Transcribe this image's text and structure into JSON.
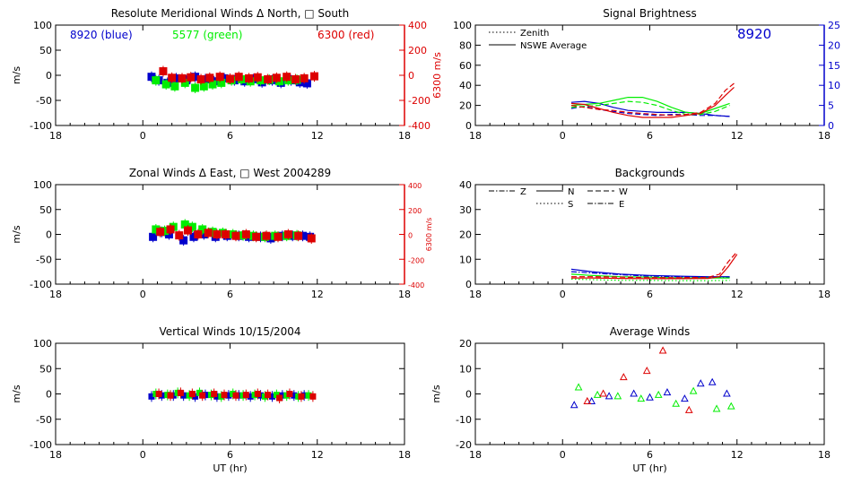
{
  "colors": {
    "blue": "#0000cc",
    "green": "#00ee00",
    "red": "#dd0000",
    "black": "#000000"
  },
  "chart_data": [
    {
      "id": "meridional",
      "type": "scatter",
      "title": "Resolute Meridional Winds Δ North, □ South",
      "ylabel": "m/s",
      "y2label": "6300 m/s",
      "xlim": [
        -6,
        18
      ],
      "ylim": [
        -100,
        100
      ],
      "y2lim": [
        -400,
        400
      ],
      "xticklabels": [
        "18",
        "0",
        "6",
        "12",
        "18"
      ],
      "yticks": [
        -100,
        -50,
        0,
        50,
        100
      ],
      "y2ticks": [
        -400,
        -200,
        0,
        200,
        400
      ],
      "annotations": [
        "8920 (blue)",
        "5577 (green)",
        "6300 (red)"
      ],
      "series": [
        {
          "color": "blue",
          "x": [
            0.6,
            1.1,
            1.7,
            2.3,
            3.0,
            3.6,
            4.3,
            4.9,
            5.6,
            6.3,
            7.0,
            7.6,
            8.2,
            8.9,
            9.5,
            10.2,
            10.8,
            11.3
          ],
          "y": [
            -3,
            -10,
            -15,
            -6,
            -10,
            -3,
            -8,
            -12,
            -6,
            -10,
            -12,
            -8,
            -14,
            -10,
            -15,
            -10,
            -14,
            -16
          ]
        },
        {
          "color": "green",
          "x": [
            0.9,
            1.6,
            2.2,
            2.9,
            3.6,
            4.2,
            4.8,
            5.4,
            6.1,
            6.8,
            7.4,
            8.1,
            8.7,
            9.4,
            10.0,
            10.6
          ],
          "y": [
            -10,
            -18,
            -22,
            -15,
            -25,
            -22,
            -18,
            -15,
            -10,
            -8,
            -12,
            -10,
            -9,
            -12,
            -10,
            -9
          ]
        },
        {
          "color": "red",
          "x": [
            1.4,
            2.0,
            2.7,
            3.3,
            4.0,
            4.6,
            5.3,
            6.0,
            6.6,
            7.3,
            7.9,
            8.6,
            9.2,
            9.9,
            10.5,
            11.1,
            11.8
          ],
          "y": [
            8,
            -5,
            -6,
            -4,
            -8,
            -5,
            -3,
            -7,
            -3,
            -6,
            -4,
            -8,
            -5,
            -3,
            -8,
            -6,
            -2
          ]
        }
      ]
    },
    {
      "id": "zonal",
      "type": "scatter",
      "title": "Zonal Winds Δ East, □ West 2004289",
      "ylabel": "m/s",
      "y2label": "6300 m/s",
      "xlim": [
        -6,
        18
      ],
      "ylim": [
        -100,
        100
      ],
      "y2lim": [
        -400,
        400
      ],
      "xticklabels": [
        "18",
        "0",
        "6",
        "12",
        "18"
      ],
      "yticks": [
        -100,
        -50,
        0,
        50,
        100
      ],
      "y2ticks": [
        -400,
        -200,
        0,
        200,
        400
      ],
      "series": [
        {
          "color": "blue",
          "x": [
            0.7,
            1.3,
            1.8,
            2.8,
            3.5,
            4.2,
            5.0,
            5.8,
            6.6,
            7.3,
            8.1,
            8.8,
            9.6,
            10.3,
            11.0,
            11.5
          ],
          "y": [
            -5,
            5,
            0,
            -12,
            -5,
            0,
            -5,
            -3,
            -3,
            -5,
            -5,
            -8,
            -3,
            -3,
            -3,
            -5
          ]
        },
        {
          "color": "green",
          "x": [
            0.9,
            1.5,
            2.1,
            2.9,
            3.4,
            4.1,
            4.8,
            5.5,
            6.2,
            6.9,
            7.6,
            8.4,
            9.1,
            9.9,
            10.6
          ],
          "y": [
            10,
            7,
            15,
            20,
            15,
            10,
            5,
            3,
            0,
            -2,
            -3,
            -5,
            -3,
            -3,
            -2
          ]
        },
        {
          "color": "red",
          "x": [
            1.2,
            1.9,
            2.5,
            3.1,
            3.8,
            4.5,
            5.1,
            5.7,
            6.4,
            7.1,
            7.8,
            8.5,
            9.3,
            10.0,
            10.7,
            11.6
          ],
          "y": [
            5,
            10,
            -2,
            8,
            0,
            3,
            0,
            0,
            -3,
            0,
            -5,
            -3,
            -5,
            0,
            -3,
            -8
          ]
        }
      ]
    },
    {
      "id": "vertical",
      "type": "scatter",
      "title": "Vertical Winds 10/15/2004",
      "ylabel": "m/s",
      "xlabel": "UT (hr)",
      "xlim": [
        -6,
        18
      ],
      "ylim": [
        -100,
        100
      ],
      "xticklabels": [
        "18",
        "0",
        "6",
        "12",
        "18"
      ],
      "yticks": [
        -100,
        -50,
        0,
        50,
        100
      ],
      "series": [
        {
          "color": "blue",
          "x": [
            0.6,
            1.3,
            2.1,
            2.8,
            3.6,
            4.3,
            5.1,
            5.9,
            6.6,
            7.4,
            8.1,
            8.9,
            9.6,
            10.4,
            11.1
          ],
          "y": [
            -5,
            -3,
            -3,
            -3,
            -5,
            -2,
            -5,
            -3,
            -3,
            -5,
            -3,
            -5,
            -3,
            -3,
            -3
          ]
        },
        {
          "color": "green",
          "x": [
            0.9,
            1.7,
            2.4,
            3.2,
            3.9,
            4.7,
            5.4,
            6.2,
            6.9,
            7.7,
            8.4,
            9.2,
            9.9,
            10.7,
            11.4
          ],
          "y": [
            0,
            -2,
            2,
            -3,
            2,
            -2,
            -5,
            0,
            -3,
            -2,
            -5,
            -2,
            -3,
            -5,
            -3
          ]
        },
        {
          "color": "red",
          "x": [
            1.1,
            1.9,
            2.6,
            3.4,
            4.1,
            4.9,
            5.6,
            6.4,
            7.1,
            7.9,
            8.6,
            9.4,
            10.1,
            10.9,
            11.7
          ],
          "y": [
            0,
            -3,
            2,
            0,
            -3,
            0,
            -2,
            -3,
            -2,
            0,
            -2,
            -8,
            0,
            -5,
            -5
          ]
        }
      ]
    },
    {
      "id": "brightness",
      "type": "line",
      "title": "Signal Brightness",
      "xlim": [
        -6,
        18
      ],
      "ylim": [
        0,
        100
      ],
      "y2lim": [
        0,
        25
      ],
      "xticklabels": [
        "18",
        "0",
        "6",
        "12",
        "18"
      ],
      "yticks": [
        0,
        20,
        40,
        60,
        80,
        100
      ],
      "y2ticks": [
        0,
        5,
        10,
        15,
        20,
        25
      ],
      "legend": [
        "Zenith",
        "NSWE Average"
      ],
      "annotation": "8920",
      "series": [
        {
          "color": "blue",
          "style": "solid",
          "x": [
            0.6,
            1.5,
            2.5,
            3.5,
            4.5,
            5.5,
            6.5,
            7.5,
            8.5,
            9.5,
            10.5,
            11.5
          ],
          "y": [
            23,
            24,
            22,
            18,
            15,
            14,
            13,
            13,
            13,
            12,
            10,
            9
          ]
        },
        {
          "color": "blue",
          "style": "dashed",
          "x": [
            0.6,
            1.5,
            2.5,
            3.5,
            4.5,
            5.5,
            6.5,
            7.5,
            8.5,
            9.5,
            10.5,
            11.5
          ],
          "y": [
            17,
            19,
            16,
            14,
            12,
            11,
            10,
            11,
            11,
            10,
            10,
            9
          ]
        },
        {
          "color": "green",
          "style": "solid",
          "x": [
            0.6,
            1.5,
            2.5,
            3.5,
            4.5,
            5.5,
            6.5,
            7.5,
            8.5,
            9.5,
            10.5,
            11.5
          ],
          "y": [
            20,
            21,
            22,
            25,
            28,
            28,
            24,
            18,
            13,
            12,
            17,
            22
          ]
        },
        {
          "color": "green",
          "style": "dashed",
          "x": [
            0.6,
            1.5,
            2.5,
            3.5,
            4.5,
            5.5,
            6.5,
            7.5,
            8.5,
            9.5,
            10.5,
            11.5
          ],
          "y": [
            18,
            19,
            20,
            22,
            24,
            23,
            20,
            15,
            11,
            11,
            14,
            20
          ]
        },
        {
          "color": "red",
          "style": "solid",
          "x": [
            0.6,
            1.5,
            2.5,
            3.5,
            4.5,
            5.5,
            6.5,
            7.5,
            8.5,
            9.5,
            10.5,
            11.2,
            11.8
          ],
          "y": [
            22,
            21,
            17,
            13,
            10,
            8,
            8,
            8,
            10,
            12,
            20,
            30,
            38
          ]
        },
        {
          "color": "red",
          "style": "dashed",
          "x": [
            0.6,
            1.5,
            2.5,
            3.5,
            4.5,
            5.5,
            6.5,
            7.5,
            8.5,
            9.5,
            10.5,
            11.2,
            11.8
          ],
          "y": [
            20,
            18,
            16,
            15,
            13,
            12,
            11,
            10,
            11,
            13,
            22,
            35,
            42
          ]
        }
      ]
    },
    {
      "id": "backgrounds",
      "type": "line",
      "title": "Backgrounds",
      "xlim": [
        -6,
        18
      ],
      "ylim": [
        0,
        40
      ],
      "xticklabels": [
        "18",
        "0",
        "6",
        "12",
        "18"
      ],
      "yticks": [
        0,
        10,
        20,
        30,
        40
      ],
      "legend": [
        "Z",
        "N",
        "W",
        "S",
        "E"
      ],
      "series": [
        {
          "color": "blue",
          "style": "solid",
          "x": [
            0.6,
            2,
            4,
            6,
            8,
            10,
            11.5
          ],
          "y": [
            6,
            5,
            4,
            3.5,
            3.2,
            3,
            3
          ]
        },
        {
          "color": "blue",
          "style": "dashdot",
          "x": [
            0.6,
            2,
            4,
            6,
            8,
            10,
            11.5
          ],
          "y": [
            5,
            4.5,
            3.8,
            3.2,
            3,
            2.8,
            2.8
          ]
        },
        {
          "color": "green",
          "style": "solid",
          "x": [
            0.6,
            2,
            4,
            6,
            8,
            10,
            11.5
          ],
          "y": [
            4,
            3.5,
            3,
            2.8,
            2.5,
            2.5,
            2.5
          ]
        },
        {
          "color": "green",
          "style": "dotted",
          "x": [
            0.6,
            2,
            4,
            6,
            8,
            10,
            11.5
          ],
          "y": [
            2,
            1.8,
            1.5,
            1.5,
            1.4,
            1.4,
            1.5
          ]
        },
        {
          "color": "red",
          "style": "solid",
          "x": [
            0.6,
            2,
            4,
            6,
            8,
            10,
            10.8,
            11.4,
            12
          ],
          "y": [
            2.5,
            2.5,
            2.3,
            2.2,
            2.2,
            2.3,
            3,
            7,
            12
          ]
        },
        {
          "color": "red",
          "style": "dashed",
          "x": [
            0.6,
            2,
            4,
            6,
            8,
            10,
            10.8,
            11.4,
            12
          ],
          "y": [
            3,
            3,
            2.8,
            2.6,
            2.6,
            2.7,
            4,
            9,
            13
          ]
        }
      ]
    },
    {
      "id": "average",
      "type": "scatter",
      "title": "Average Winds",
      "ylabel": "m/s",
      "xlabel": "UT (hr)",
      "xlim": [
        -6,
        18
      ],
      "ylim": [
        -20,
        20
      ],
      "xticklabels": [
        "18",
        "0",
        "6",
        "12",
        "18"
      ],
      "yticks": [
        -20,
        -10,
        0,
        10,
        20
      ],
      "series": [
        {
          "color": "blue",
          "x": [
            0.8,
            2.0,
            3.2,
            4.9,
            6.0,
            7.2,
            8.4,
            9.5,
            10.3,
            11.3
          ],
          "y": [
            -4.5,
            -3,
            -1,
            0,
            -1.5,
            0.5,
            -2,
            4,
            4.5,
            0
          ]
        },
        {
          "color": "green",
          "x": [
            1.1,
            2.4,
            3.8,
            5.4,
            6.6,
            7.8,
            9.0,
            10.6,
            11.6
          ],
          "y": [
            2.5,
            -0.5,
            -1,
            -2,
            -0.5,
            -4,
            1,
            -6,
            -5
          ]
        },
        {
          "color": "red",
          "x": [
            1.7,
            2.8,
            4.2,
            5.8,
            6.9,
            8.7
          ],
          "y": [
            -3,
            0,
            6.5,
            9,
            17,
            -6.5
          ]
        }
      ]
    }
  ]
}
